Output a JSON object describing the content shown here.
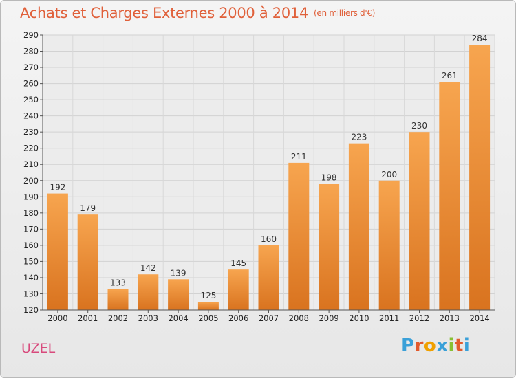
{
  "chart_data": {
    "type": "bar",
    "title": "Achats et Charges Externes 2000 à 2014",
    "subtitle": "(en milliers d'€)",
    "categories": [
      "2000",
      "2001",
      "2002",
      "2003",
      "2004",
      "2005",
      "2006",
      "2007",
      "2008",
      "2009",
      "2010",
      "2011",
      "2012",
      "2013",
      "2014"
    ],
    "values": [
      192,
      179,
      133,
      142,
      139,
      125,
      145,
      160,
      211,
      198,
      223,
      200,
      230,
      261,
      284
    ],
    "ylim": [
      120,
      290
    ],
    "yticks": [
      120,
      130,
      140,
      150,
      160,
      170,
      180,
      190,
      200,
      210,
      220,
      230,
      240,
      250,
      260,
      270,
      280,
      290
    ],
    "grid": true,
    "bar_color_top": "#f7a54f",
    "bar_color_bottom": "#d9731f"
  },
  "footer": {
    "commune": "UZEL",
    "logo_letters": [
      "P",
      "r",
      "o",
      "x",
      "i",
      "t",
      "i"
    ]
  }
}
